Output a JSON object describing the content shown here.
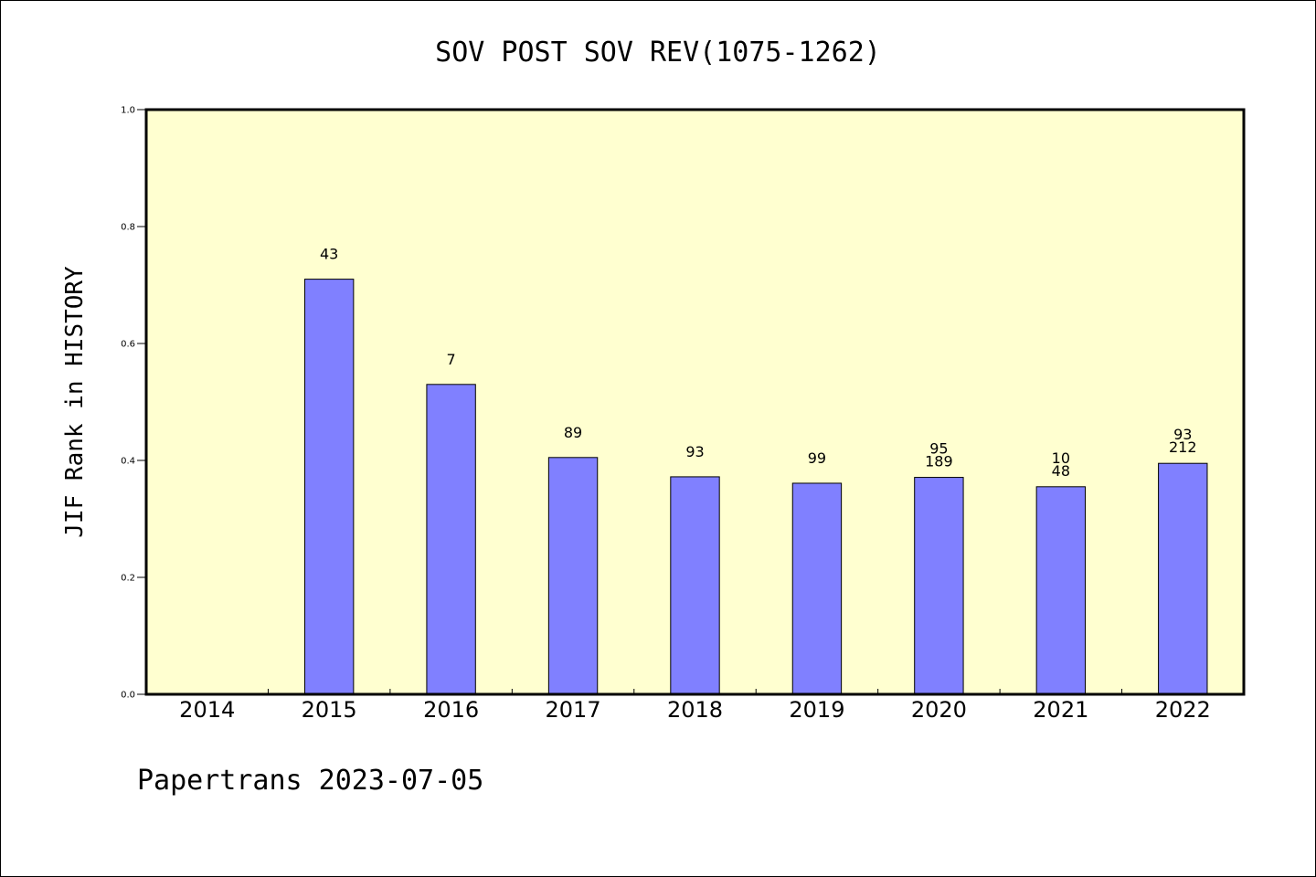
{
  "chart_data": {
    "type": "bar",
    "title": "SOV POST SOV REV(1075-1262)",
    "xlabel": "",
    "ylabel": "JIF Rank in HISTORY",
    "ylim": [
      0,
      1.0
    ],
    "yticks": [
      "0.0",
      "0.2",
      "0.4",
      "0.6",
      "0.8",
      "1.0"
    ],
    "categories": [
      "2014",
      "2015",
      "2016",
      "2017",
      "2018",
      "2019",
      "2020",
      "2021",
      "2022"
    ],
    "values": [
      null,
      0.71,
      0.53,
      0.405,
      0.372,
      0.361,
      0.371,
      0.355,
      0.395
    ],
    "bar_labels": [
      [],
      [
        "43"
      ],
      [
        "7"
      ],
      [
        "89"
      ],
      [
        "93"
      ],
      [
        "99"
      ],
      [
        "95",
        "189"
      ],
      [
        "10",
        "48"
      ],
      [
        "93",
        "212"
      ]
    ],
    "colors": {
      "plot_background": "#ffffd0",
      "bar_fill": "#8080ff",
      "bar_edge": "#000000"
    },
    "grid": false,
    "legend": "none"
  },
  "footer": {
    "text": "Papertrans 2023-07-05"
  }
}
